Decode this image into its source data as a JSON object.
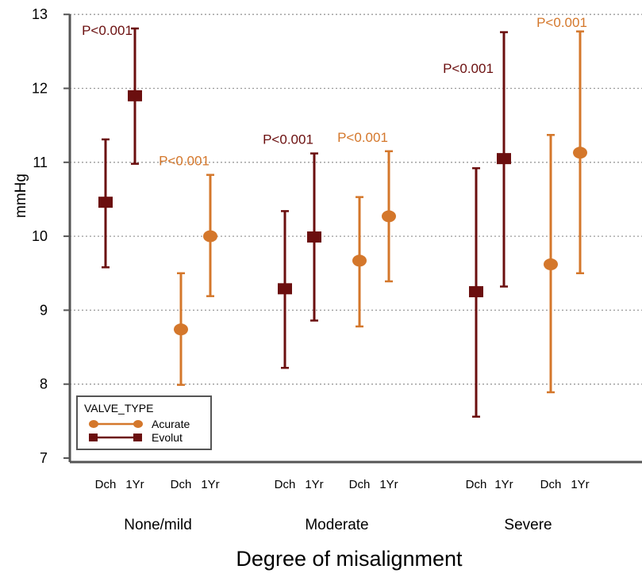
{
  "chart_data": {
    "type": "scatter",
    "subtype": "error-bar",
    "xlabel": "Degree of misalignment",
    "ylabel": "mmHg",
    "ylim": [
      7,
      13
    ],
    "yticks": [
      7,
      8,
      9,
      10,
      11,
      12,
      13
    ],
    "grid": "horizontal dotted",
    "groups": [
      "None/mild",
      "Moderate",
      "Severe"
    ],
    "timepoints": [
      "Dch",
      "1Yr"
    ],
    "legend": {
      "title": "VALVE_TYPE",
      "placement": "bottom-left",
      "entries": [
        "Acurate",
        "Evolut"
      ]
    },
    "series": [
      {
        "name": "Evolut",
        "color": "#6B0F0F",
        "marker": "square",
        "points": [
          {
            "group": "None/mild",
            "timepoint": "Dch",
            "mean": 10.46,
            "lower": 9.58,
            "upper": 11.31
          },
          {
            "group": "None/mild",
            "timepoint": "1Yr",
            "mean": 11.9,
            "lower": 10.98,
            "upper": 12.81
          },
          {
            "group": "Moderate",
            "timepoint": "Dch",
            "mean": 9.29,
            "lower": 8.22,
            "upper": 10.34
          },
          {
            "group": "Moderate",
            "timepoint": "1Yr",
            "mean": 9.99,
            "lower": 8.86,
            "upper": 11.12
          },
          {
            "group": "Severe",
            "timepoint": "Dch",
            "mean": 9.25,
            "lower": 7.56,
            "upper": 10.92
          },
          {
            "group": "Severe",
            "timepoint": "1Yr",
            "mean": 11.05,
            "lower": 9.32,
            "upper": 12.76
          }
        ],
        "pvalues": [
          {
            "group": "None/mild",
            "label": "P<0.001"
          },
          {
            "group": "Moderate",
            "label": "P<0.001"
          },
          {
            "group": "Severe",
            "label": "P<0.001"
          }
        ]
      },
      {
        "name": "Acurate",
        "color": "#D4772B",
        "marker": "circle",
        "points": [
          {
            "group": "None/mild",
            "timepoint": "Dch",
            "mean": 8.74,
            "lower": 7.99,
            "upper": 9.5
          },
          {
            "group": "None/mild",
            "timepoint": "1Yr",
            "mean": 10.0,
            "lower": 9.19,
            "upper": 10.83
          },
          {
            "group": "Moderate",
            "timepoint": "Dch",
            "mean": 9.67,
            "lower": 8.78,
            "upper": 10.53
          },
          {
            "group": "Moderate",
            "timepoint": "1Yr",
            "mean": 10.27,
            "lower": 9.39,
            "upper": 11.15
          },
          {
            "group": "Severe",
            "timepoint": "Dch",
            "mean": 9.62,
            "lower": 7.89,
            "upper": 11.37
          },
          {
            "group": "Severe",
            "timepoint": "1Yr",
            "mean": 11.13,
            "lower": 9.5,
            "upper": 12.77
          }
        ],
        "pvalues": [
          {
            "group": "None/mild",
            "label": "P<0.001"
          },
          {
            "group": "Moderate",
            "label": "P<0.001"
          },
          {
            "group": "Severe",
            "label": "P<0.001"
          }
        ]
      }
    ]
  }
}
